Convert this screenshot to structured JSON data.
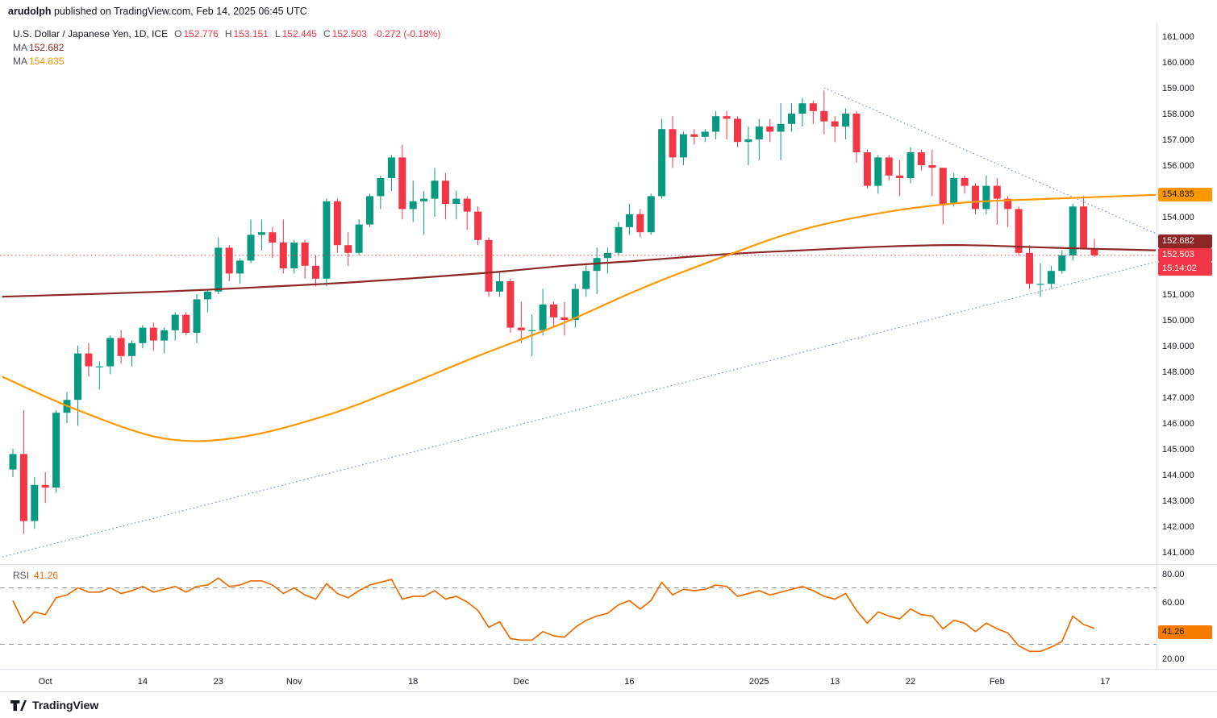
{
  "header": {
    "author": "arudolph",
    "published": " published on TradingView.com, Feb 14, 2025 06:45 UTC"
  },
  "legend": {
    "symbol": "U.S. Dollar / Japanese Yen, 1D, ICE",
    "ohlc": {
      "o_label": "O",
      "o": "152.776",
      "h_label": "H",
      "h": "153.151",
      "l_label": "L",
      "l": "152.445",
      "c_label": "C",
      "c": "152.503",
      "change": "-0.272 (-0.18%)"
    },
    "ma1": {
      "label": "MA",
      "value": "152.682"
    },
    "ma2": {
      "label": "MA",
      "value": "154.835"
    }
  },
  "badges": {
    "ma_fast": "154.835",
    "ma_slow": "152.682",
    "last": "152.503",
    "countdown": "15:14:02",
    "rsi": "41.26"
  },
  "rsi_panel": {
    "title": "RSI",
    "value": "41.26"
  },
  "footer": {
    "brand": "TradingView"
  },
  "colors": {
    "up": "#089981",
    "down": "#F23645",
    "ma_fast": "#FF9800",
    "ma_slow": "#8c2726",
    "rsi": "#EF6C00",
    "trendline": "#6a8fd8",
    "last_price": "#F23645",
    "axis_text": "#131722",
    "band_dash": "#8f939c",
    "divider": "#e0e3eb"
  },
  "chart_data": {
    "type": "candlestick",
    "title": "U.S. Dollar / Japanese Yen, 1D, ICE",
    "interval": "1D",
    "price_range": [
      141,
      161
    ],
    "last_price": 152.503,
    "price_axis_labels": [
      "161.000",
      "160.000",
      "159.000",
      "158.000",
      "157.000",
      "156.000",
      "155.000",
      "154.000",
      "153.000",
      "152.000",
      "151.000",
      "150.000",
      "149.000",
      "148.000",
      "147.000",
      "146.000",
      "145.000",
      "144.000",
      "143.000",
      "142.000",
      "141.000"
    ],
    "time_ticks": [
      {
        "i": 3,
        "label": "Oct"
      },
      {
        "i": 12,
        "label": "14"
      },
      {
        "i": 19,
        "label": "23"
      },
      {
        "i": 26,
        "label": "Nov"
      },
      {
        "i": 37,
        "label": "18"
      },
      {
        "i": 47,
        "label": "Dec"
      },
      {
        "i": 57,
        "label": "16"
      },
      {
        "i": 69,
        "label": "2025"
      },
      {
        "i": 76,
        "label": "13"
      },
      {
        "i": 83,
        "label": "22"
      },
      {
        "i": 91,
        "label": "Feb"
      },
      {
        "i": 101,
        "label": "17"
      }
    ],
    "rsi_axis_labels": [
      {
        "v": 80,
        "label": "80.00"
      },
      {
        "v": 60,
        "label": "60.00"
      },
      {
        "v": 20,
        "label": "20.00"
      }
    ],
    "rsi_bands": [
      70,
      30
    ],
    "candles": [
      [
        144.2,
        145.0,
        143.9,
        144.8
      ],
      [
        144.8,
        146.5,
        141.7,
        142.2
      ],
      [
        142.2,
        143.9,
        141.9,
        143.6
      ],
      [
        143.6,
        144.1,
        142.9,
        143.5
      ],
      [
        143.5,
        146.5,
        143.3,
        146.4
      ],
      [
        146.4,
        147.2,
        146.0,
        146.9
      ],
      [
        146.9,
        149.0,
        145.9,
        148.7
      ],
      [
        148.7,
        149.1,
        147.8,
        148.2
      ],
      [
        148.2,
        148.4,
        147.3,
        148.2
      ],
      [
        148.2,
        149.4,
        147.9,
        149.3
      ],
      [
        149.3,
        149.6,
        148.3,
        148.6
      ],
      [
        148.6,
        149.2,
        148.2,
        149.1
      ],
      [
        149.1,
        149.8,
        148.9,
        149.7
      ],
      [
        149.7,
        149.9,
        148.8,
        149.2
      ],
      [
        149.2,
        149.7,
        148.7,
        149.6
      ],
      [
        149.6,
        150.3,
        149.2,
        150.2
      ],
      [
        150.2,
        150.3,
        149.4,
        149.5
      ],
      [
        149.5,
        151.0,
        149.1,
        150.8
      ],
      [
        150.8,
        151.2,
        150.3,
        151.1
      ],
      [
        151.1,
        153.2,
        151.0,
        152.8
      ],
      [
        152.8,
        152.9,
        151.5,
        151.8
      ],
      [
        151.8,
        152.4,
        151.4,
        152.3
      ],
      [
        152.3,
        153.9,
        152.2,
        153.3
      ],
      [
        153.3,
        153.9,
        152.7,
        153.4
      ],
      [
        153.4,
        153.6,
        152.4,
        153.0
      ],
      [
        153.0,
        153.9,
        151.8,
        152.0
      ],
      [
        152.0,
        153.1,
        151.8,
        153.0
      ],
      [
        153.0,
        153.1,
        151.6,
        152.1
      ],
      [
        152.1,
        152.5,
        151.3,
        151.6
      ],
      [
        151.6,
        154.7,
        151.3,
        154.6
      ],
      [
        154.6,
        154.7,
        152.6,
        152.9
      ],
      [
        152.9,
        153.4,
        152.1,
        152.6
      ],
      [
        152.6,
        153.9,
        152.5,
        153.7
      ],
      [
        153.7,
        154.9,
        153.6,
        154.8
      ],
      [
        154.8,
        155.6,
        154.3,
        155.5
      ],
      [
        155.5,
        156.4,
        155.0,
        156.3
      ],
      [
        156.3,
        156.8,
        153.9,
        154.3
      ],
      [
        154.3,
        155.4,
        153.8,
        154.6
      ],
      [
        154.6,
        155.0,
        153.3,
        154.7
      ],
      [
        154.7,
        155.9,
        154.0,
        155.4
      ],
      [
        155.4,
        155.7,
        153.9,
        154.5
      ],
      [
        154.5,
        155.0,
        153.9,
        154.7
      ],
      [
        154.7,
        154.8,
        153.5,
        154.2
      ],
      [
        154.2,
        154.4,
        152.9,
        153.1
      ],
      [
        153.1,
        153.2,
        150.9,
        151.1
      ],
      [
        151.1,
        151.9,
        150.9,
        151.5
      ],
      [
        151.5,
        151.6,
        149.5,
        149.7
      ],
      [
        149.7,
        150.7,
        149.1,
        149.6
      ],
      [
        149.6,
        150.2,
        148.6,
        149.6
      ],
      [
        149.6,
        151.2,
        149.4,
        150.6
      ],
      [
        150.6,
        150.7,
        149.7,
        150.1
      ],
      [
        150.1,
        150.7,
        149.4,
        150.0
      ],
      [
        150.0,
        151.4,
        149.7,
        151.2
      ],
      [
        151.2,
        152.2,
        150.9,
        151.9
      ],
      [
        151.9,
        152.8,
        151.0,
        152.4
      ],
      [
        152.4,
        152.8,
        151.8,
        152.6
      ],
      [
        152.6,
        153.8,
        152.5,
        153.6
      ],
      [
        153.6,
        154.5,
        153.3,
        154.1
      ],
      [
        154.1,
        154.3,
        153.2,
        153.4
      ],
      [
        153.4,
        154.9,
        153.3,
        154.8
      ],
      [
        154.8,
        157.8,
        154.7,
        157.4
      ],
      [
        157.4,
        157.9,
        155.9,
        156.3
      ],
      [
        156.3,
        157.3,
        156.0,
        157.2
      ],
      [
        157.2,
        157.4,
        156.8,
        157.1
      ],
      [
        157.1,
        157.4,
        156.9,
        157.3
      ],
      [
        157.3,
        158.1,
        157.0,
        157.9
      ],
      [
        157.9,
        158.1,
        157.0,
        157.8
      ],
      [
        157.8,
        157.9,
        156.7,
        156.9
      ],
      [
        156.9,
        157.5,
        156.0,
        157.0
      ],
      [
        157.0,
        157.8,
        156.2,
        157.5
      ],
      [
        157.5,
        157.8,
        156.9,
        157.3
      ],
      [
        157.3,
        158.4,
        156.2,
        157.6
      ],
      [
        157.6,
        158.4,
        157.3,
        158.0
      ],
      [
        158.0,
        158.6,
        157.5,
        158.4
      ],
      [
        158.4,
        158.5,
        157.6,
        158.1
      ],
      [
        158.1,
        158.9,
        157.2,
        157.7
      ],
      [
        157.7,
        157.9,
        156.9,
        157.5
      ],
      [
        157.5,
        158.2,
        157.0,
        158.0
      ],
      [
        158.0,
        158.1,
        156.1,
        156.5
      ],
      [
        156.5,
        156.6,
        155.1,
        155.2
      ],
      [
        155.2,
        156.4,
        154.9,
        156.3
      ],
      [
        156.3,
        156.4,
        155.4,
        155.6
      ],
      [
        155.6,
        156.2,
        154.8,
        155.5
      ],
      [
        155.5,
        156.7,
        155.3,
        156.5
      ],
      [
        156.5,
        156.6,
        155.8,
        156.0
      ],
      [
        156.0,
        156.6,
        154.8,
        155.9
      ],
      [
        155.9,
        155.9,
        153.7,
        154.5
      ],
      [
        154.5,
        155.7,
        154.4,
        155.5
      ],
      [
        155.5,
        155.6,
        154.9,
        155.2
      ],
      [
        155.2,
        155.3,
        154.1,
        154.3
      ],
      [
        154.3,
        155.6,
        154.1,
        155.2
      ],
      [
        155.2,
        155.5,
        153.7,
        154.7
      ],
      [
        154.7,
        154.8,
        153.6,
        154.3
      ],
      [
        154.3,
        154.4,
        152.5,
        152.6
      ],
      [
        152.6,
        152.9,
        151.2,
        151.4
      ],
      [
        151.4,
        152.2,
        150.9,
        151.4
      ],
      [
        151.4,
        152.1,
        151.2,
        151.9
      ],
      [
        151.9,
        152.7,
        151.8,
        152.5
      ],
      [
        152.5,
        154.5,
        152.3,
        154.4
      ],
      [
        154.4,
        154.8,
        152.8,
        152.8
      ],
      [
        152.776,
        153.151,
        152.445,
        152.503
      ]
    ],
    "rsi": [
      61,
      45,
      53,
      51,
      63,
      65,
      70,
      67,
      67,
      70,
      66,
      68,
      71,
      67,
      69,
      71,
      67,
      71,
      72,
      77,
      71,
      72,
      75,
      75,
      72,
      66,
      70,
      65,
      62,
      73,
      66,
      63,
      68,
      72,
      74,
      76,
      62,
      64,
      64,
      68,
      62,
      64,
      60,
      54,
      42,
      46,
      34,
      33,
      33,
      39,
      36,
      35,
      42,
      47,
      50,
      52,
      58,
      61,
      55,
      61,
      74,
      65,
      69,
      68,
      69,
      72,
      71,
      64,
      66,
      68,
      65,
      67,
      69,
      71,
      68,
      64,
      62,
      66,
      54,
      45,
      53,
      50,
      48,
      55,
      51,
      50,
      41,
      47,
      45,
      39,
      45,
      41,
      38,
      29,
      25,
      25,
      28,
      32,
      50,
      44,
      41.26
    ],
    "ma_fast_points": [
      [
        -1,
        147.8
      ],
      [
        6,
        146.5
      ],
      [
        14,
        145.4
      ],
      [
        21,
        145.45
      ],
      [
        29,
        146.3
      ],
      [
        36,
        147.4
      ],
      [
        43,
        148.6
      ],
      [
        51,
        149.9
      ],
      [
        58,
        151.2
      ],
      [
        66,
        152.5
      ],
      [
        73,
        153.5
      ],
      [
        81,
        154.2
      ],
      [
        88,
        154.55
      ],
      [
        96,
        154.7
      ],
      [
        106,
        154.85
      ]
    ],
    "ma_slow_points": [
      [
        -1,
        150.9
      ],
      [
        14,
        151.1
      ],
      [
        29,
        151.4
      ],
      [
        43,
        151.8
      ],
      [
        51,
        152.1
      ],
      [
        58,
        152.3
      ],
      [
        66,
        152.55
      ],
      [
        73,
        152.7
      ],
      [
        81,
        152.85
      ],
      [
        88,
        152.9
      ],
      [
        96,
        152.8
      ],
      [
        106,
        152.7
      ]
    ],
    "trendlines": [
      {
        "from": [
          75,
          159.0
        ],
        "to": [
          105.7,
          153.35
        ]
      },
      {
        "from": [
          -2,
          140.7
        ],
        "to": [
          105.7,
          152.25
        ]
      }
    ]
  }
}
